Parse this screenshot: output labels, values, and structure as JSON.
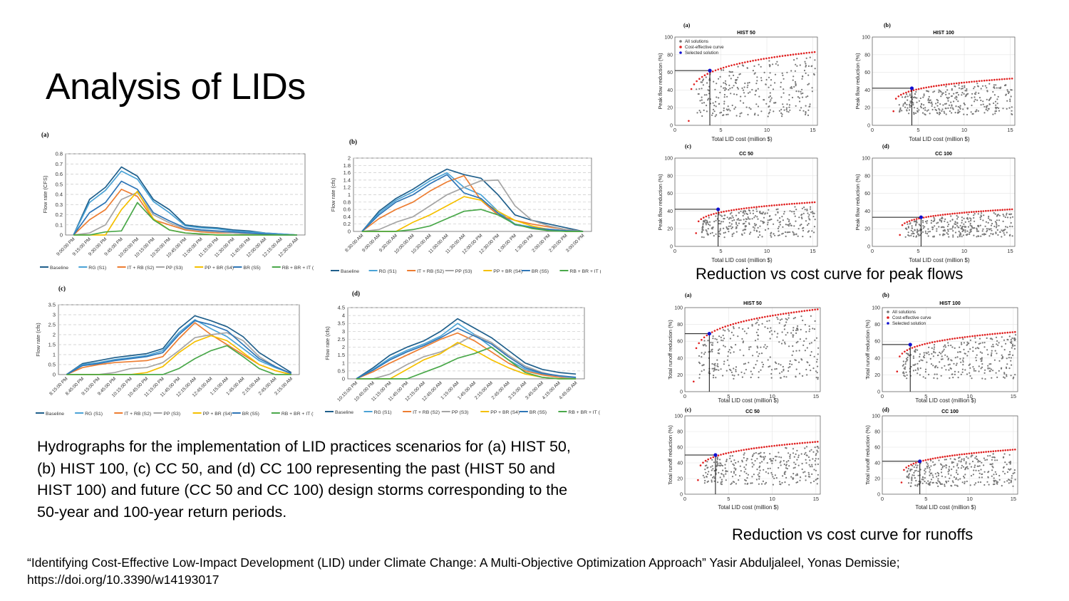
{
  "slide": {
    "title": "Analysis of LIDs",
    "caption": "Hydrographs for the implementation of LID practices scenarios for (a) HIST 50, (b) HIST 100, (c) CC 50, and (d) CC 100 representing the past (HIST 50 and HIST 100) and future (CC 50 and CC 100) design storms corresponding to the 50-year and 100-year return periods.",
    "peak_caption": "Reduction vs cost curve for peak flows",
    "runoff_caption": "Reduction vs cost curve for runoffs",
    "citation": "“Identifying Cost-Effective Low-Impact Development (LID) under Climate Change: A Multi-Objective Optimization Approach” Yasir Abduljaleel, Yonas Demissie; https://doi.org/10.3390/w14193017"
  },
  "colors": {
    "Baseline": "#1f5f8b",
    "RG (S1)": "#4ba3d6",
    "IT + RB (S2)": "#ed7d31",
    "PP (S3)": "#a5a5a5",
    "PP + BR (S4)": "#f5c000",
    "BR (S5)": "#2e75b6",
    "RB + BR + IT (S6)": "#4aa84a",
    "all_solutions": "#777777",
    "cost_effective": "#e02020",
    "selected": "#1010d0"
  },
  "chart_data": [
    {
      "type": "line",
      "panel": "(a)",
      "ylabel": "Flow rate (CFS)",
      "yticks": [
        "0",
        "0.1",
        "0.2",
        "0.3",
        "0.4",
        "0.5",
        "0.6",
        "0.7",
        "0.8"
      ],
      "ylim": [
        0,
        0.8
      ],
      "categories": [
        "9:00:00 PM",
        "9:15:00 PM",
        "9:30:00 PM",
        "9:45:00 PM",
        "10:00:00 PM",
        "10:15:00 PM",
        "10:30:00 PM",
        "10:45:00 PM",
        "11:00:00 PM",
        "11:15:00 PM",
        "11:30:00 PM",
        "11:45:00 PM",
        "12:00:00 AM",
        "12:15:00 AM",
        "12:30:00 AM"
      ],
      "series": [
        {
          "name": "Baseline",
          "values": [
            0,
            0.35,
            0.47,
            0.67,
            0.58,
            0.35,
            0.25,
            0.1,
            0.08,
            0.07,
            0.05,
            0.04,
            0.02,
            0.01,
            0
          ]
        },
        {
          "name": "RG (S1)",
          "values": [
            0,
            0.32,
            0.44,
            0.63,
            0.55,
            0.33,
            0.22,
            0.09,
            0.07,
            0.06,
            0.04,
            0.03,
            0.02,
            0.01,
            0
          ]
        },
        {
          "name": "IT + RB (S2)",
          "values": [
            0,
            0.15,
            0.25,
            0.45,
            0.38,
            0.15,
            0.1,
            0.05,
            0.03,
            0.02,
            0.02,
            0.01,
            0.01,
            0,
            0
          ]
        },
        {
          "name": "PP (S3)",
          "values": [
            0,
            0.02,
            0.1,
            0.35,
            0.42,
            0.2,
            0.12,
            0.06,
            0.04,
            0.03,
            0.02,
            0.01,
            0,
            0,
            0
          ]
        },
        {
          "name": "PP + BR (S4)",
          "values": [
            0,
            0,
            0,
            0.25,
            0.43,
            0.16,
            0.05,
            0.02,
            0.01,
            0,
            0,
            0,
            0,
            0,
            0
          ]
        },
        {
          "name": "BR (S5)",
          "values": [
            0,
            0.22,
            0.32,
            0.53,
            0.45,
            0.22,
            0.14,
            0.07,
            0.05,
            0.04,
            0.03,
            0.02,
            0.01,
            0,
            0
          ]
        },
        {
          "name": "RB + BR + IT (S6)",
          "values": [
            0,
            0,
            0.03,
            0.04,
            0.32,
            0.15,
            0.05,
            0.02,
            0.01,
            0,
            0,
            0,
            0,
            0,
            0
          ]
        }
      ]
    },
    {
      "type": "line",
      "panel": "(b)",
      "ylabel": "Flow rate (cfs)",
      "yticks": [
        "0",
        "0.2",
        "0.4",
        "0.6",
        "0.8",
        "1",
        "1.2",
        "1.4",
        "1.6",
        "1.8",
        "2"
      ],
      "ylim": [
        0,
        2
      ],
      "categories": [
        "8:30:00 AM",
        "9:00:00 AM",
        "9:30:00 AM",
        "10:00:00 AM",
        "10:30:00 AM",
        "11:00:00 AM",
        "11:30:00 AM",
        "12:00:00 PM",
        "12:30:00 PM",
        "1:00:00 PM",
        "1:30:00 PM",
        "2:00:00 PM",
        "2:30:00 PM",
        "3:00:00 PM"
      ],
      "series": [
        {
          "name": "Baseline",
          "values": [
            0,
            0.55,
            0.9,
            1.15,
            1.45,
            1.7,
            1.55,
            1.45,
            1.0,
            0.45,
            0.3,
            0.2,
            0.1,
            0
          ]
        },
        {
          "name": "RG (S1)",
          "values": [
            0,
            0.5,
            0.85,
            1.08,
            1.38,
            1.6,
            1.2,
            1.0,
            0.55,
            0.2,
            0.12,
            0.06,
            0.02,
            0
          ]
        },
        {
          "name": "IT + RB (S2)",
          "values": [
            0,
            0.35,
            0.6,
            0.8,
            1.1,
            1.35,
            1.52,
            0.85,
            0.45,
            0.3,
            0.2,
            0.12,
            0.05,
            0
          ]
        },
        {
          "name": "PP (S3)",
          "values": [
            0,
            0.05,
            0.25,
            0.4,
            0.7,
            1.0,
            1.2,
            1.38,
            1.4,
            0.7,
            0.3,
            0.15,
            0.05,
            0
          ]
        },
        {
          "name": "PP + BR (S4)",
          "values": [
            0,
            0,
            0,
            0.25,
            0.45,
            0.7,
            0.95,
            0.85,
            0.55,
            0.3,
            0.15,
            0.05,
            0,
            0
          ]
        },
        {
          "name": "BR (S5)",
          "values": [
            0,
            0.45,
            0.8,
            1.0,
            1.3,
            1.55,
            1.05,
            0.9,
            0.5,
            0.18,
            0.1,
            0.05,
            0.02,
            0
          ]
        },
        {
          "name": "RB + BR + IT (S6)",
          "values": [
            0,
            0,
            0,
            0.05,
            0.15,
            0.35,
            0.55,
            0.6,
            0.45,
            0.2,
            0.08,
            0.02,
            0,
            0
          ]
        }
      ]
    },
    {
      "type": "line",
      "panel": "(c)",
      "ylabel": "Flow rate (cfs)",
      "yticks": [
        "0",
        "0.5",
        "1",
        "1.5",
        "2",
        "2.5",
        "3",
        "3.5"
      ],
      "ylim": [
        0,
        3.5
      ],
      "categories": [
        "8:15:00 PM",
        "8:45:00 PM",
        "9:15:00 PM",
        "9:45:00 PM",
        "10:15:00 PM",
        "10:45:00 PM",
        "11:15:00 PM",
        "11:45:00 PM",
        "12:15:00 AM",
        "12:45:00 AM",
        "1:15:00 AM",
        "1:45:00 AM",
        "2:15:00 AM",
        "2:45:00 AM",
        "3:15:00 AM"
      ],
      "series": [
        {
          "name": "Baseline",
          "values": [
            0,
            0.55,
            0.7,
            0.85,
            0.95,
            1.05,
            1.3,
            2.3,
            2.95,
            2.7,
            2.4,
            1.9,
            1.1,
            0.6,
            0.1
          ]
        },
        {
          "name": "RG (S1)",
          "values": [
            0,
            0.5,
            0.6,
            0.75,
            0.85,
            0.95,
            1.2,
            2.1,
            2.75,
            2.3,
            1.9,
            1.3,
            0.7,
            0.35,
            0.05
          ]
        },
        {
          "name": "IT + RB (S2)",
          "values": [
            0,
            0.35,
            0.5,
            0.6,
            0.65,
            0.7,
            0.9,
            1.8,
            2.6,
            2.0,
            1.5,
            1.0,
            0.5,
            0.2,
            0
          ]
        },
        {
          "name": "PP (S3)",
          "values": [
            0,
            0,
            0,
            0.1,
            0.3,
            0.35,
            0.6,
            1.2,
            1.85,
            2.0,
            2.1,
            1.7,
            0.9,
            0.4,
            0.05
          ]
        },
        {
          "name": "PP + BR (S4)",
          "values": [
            0,
            0,
            0,
            0,
            0,
            0.1,
            0.4,
            1.1,
            1.65,
            1.95,
            1.7,
            1.1,
            0.5,
            0.2,
            0
          ]
        },
        {
          "name": "BR (S5)",
          "values": [
            0,
            0.45,
            0.55,
            0.7,
            0.8,
            0.9,
            1.1,
            2.0,
            2.7,
            2.5,
            2.2,
            1.5,
            0.8,
            0.4,
            0.05
          ]
        },
        {
          "name": "RB + BR + IT (S6)",
          "values": [
            0,
            0,
            0,
            0,
            0,
            0,
            0,
            0.3,
            0.8,
            1.2,
            1.45,
            0.9,
            0.3,
            0,
            0
          ]
        }
      ]
    },
    {
      "type": "line",
      "panel": "(d)",
      "ylabel": "Flow rate (cfs)",
      "yticks": [
        "0",
        "0.5",
        "1",
        "1.5",
        "2",
        "2.5",
        "3",
        "3.5",
        "4",
        "4.5"
      ],
      "ylim": [
        0,
        4.5
      ],
      "categories": [
        "10:15:00 PM",
        "10:45:00 PM",
        "11:15:00 PM",
        "11:45:00 PM",
        "12:15:00 AM",
        "12:45:00 AM",
        "1:15:00 AM",
        "1:45:00 AM",
        "2:15:00 AM",
        "2:45:00 AM",
        "3:15:00 AM",
        "3:45:00 AM",
        "4:15:00 AM",
        "4:45:00 AM"
      ],
      "series": [
        {
          "name": "Baseline",
          "values": [
            0,
            0.7,
            1.5,
            2.0,
            2.4,
            3.0,
            3.8,
            3.2,
            2.6,
            1.8,
            1.0,
            0.6,
            0.4,
            0.3
          ]
        },
        {
          "name": "RG (S1)",
          "values": [
            0,
            0.6,
            1.3,
            1.8,
            2.2,
            2.7,
            3.5,
            2.8,
            2.0,
            1.2,
            0.6,
            0.3,
            0.15,
            0.05
          ]
        },
        {
          "name": "IT + RB (S2)",
          "values": [
            0,
            0.45,
            1.0,
            1.5,
            2.0,
            2.5,
            2.9,
            2.4,
            1.7,
            1.0,
            0.5,
            0.25,
            0.1,
            0
          ]
        },
        {
          "name": "PP (S3)",
          "values": [
            0,
            0,
            0.3,
            0.9,
            1.4,
            1.7,
            2.2,
            2.8,
            2.3,
            1.5,
            0.8,
            0.4,
            0.15,
            0
          ]
        },
        {
          "name": "PP + BR (S4)",
          "values": [
            0,
            0,
            0,
            0.6,
            1.2,
            1.6,
            2.3,
            1.8,
            1.2,
            0.7,
            0.3,
            0.1,
            0,
            0
          ]
        },
        {
          "name": "BR (S5)",
          "values": [
            0,
            0.55,
            1.2,
            1.7,
            2.1,
            2.6,
            3.2,
            2.7,
            2.2,
            1.4,
            0.7,
            0.35,
            0.2,
            0.1
          ]
        },
        {
          "name": "RB + BR + IT (S6)",
          "values": [
            0,
            0,
            0,
            0,
            0.4,
            0.8,
            1.3,
            1.6,
            2.0,
            1.2,
            0.4,
            0.1,
            0,
            0
          ]
        }
      ]
    },
    {
      "type": "scatter",
      "panel": "(a)",
      "title": "HIST 50",
      "ylabel": "Peak flow reduction (%)",
      "xlabel": "Total LID cost (million $)",
      "xlim": [
        0,
        15.5
      ],
      "ylim": [
        0,
        100
      ],
      "xticks": [
        0,
        5,
        10,
        15
      ],
      "yticks": [
        0,
        20,
        40,
        60,
        80,
        100
      ],
      "legend": [
        "All solutions",
        "Cost-effective curve",
        "Selected solution"
      ],
      "legend_position": "top-left",
      "selected": {
        "x": 3.8,
        "y": 62
      },
      "frontier": {
        "x_start": 1.5,
        "y_start": 5,
        "y_end": 83,
        "curvature": 0.2
      },
      "cloud": {
        "y_min": 10,
        "y_max": 80
      }
    },
    {
      "type": "scatter",
      "panel": "(b)",
      "title": "HIST 100",
      "ylabel": "Peak flow reduction (%)",
      "xlabel": "Total LID cost (million $)",
      "xlim": [
        0,
        15.5
      ],
      "ylim": [
        0,
        100
      ],
      "xticks": [
        0,
        5,
        10,
        15
      ],
      "yticks": [
        0,
        20,
        40,
        60,
        80,
        100
      ],
      "selected": {
        "x": 4.3,
        "y": 42
      },
      "frontier": {
        "x_start": 2.3,
        "y_start": 16,
        "y_end": 53,
        "curvature": 0.25
      },
      "cloud": {
        "y_min": 12,
        "y_max": 48
      }
    },
    {
      "type": "scatter",
      "panel": "(c)",
      "title": "CC 50",
      "ylabel": "Peak flow reduction (%)",
      "xlabel": "Total LID cost (million $)",
      "xlim": [
        0,
        15.5
      ],
      "ylim": [
        0,
        100
      ],
      "xticks": [
        0,
        5,
        10,
        15
      ],
      "yticks": [
        0,
        20,
        40,
        60,
        80,
        100
      ],
      "selected": {
        "x": 4.7,
        "y": 42
      },
      "frontier": {
        "x_start": 2.3,
        "y_start": 15,
        "y_end": 50,
        "curvature": 0.25
      },
      "cloud": {
        "y_min": 10,
        "y_max": 45
      }
    },
    {
      "type": "scatter",
      "panel": "(d)",
      "title": "CC 100",
      "ylabel": "Peak flow reduction (%)",
      "xlabel": "Total LID cost (million $)",
      "xlim": [
        0,
        15.5
      ],
      "ylim": [
        0,
        100
      ],
      "xticks": [
        0,
        5,
        10,
        15
      ],
      "yticks": [
        0,
        20,
        40,
        60,
        80,
        100
      ],
      "selected": {
        "x": 5.3,
        "y": 33
      },
      "frontier": {
        "x_start": 3.0,
        "y_start": 13,
        "y_end": 42,
        "curvature": 0.25
      },
      "cloud": {
        "y_min": 10,
        "y_max": 38
      }
    },
    {
      "type": "scatter",
      "panel": "(a)",
      "title": "HIST 50",
      "ylabel": "Total runoff reduction (%)",
      "xlabel": "Total LID cost (million $)",
      "xlim": [
        0,
        15.5
      ],
      "ylim": [
        0,
        100
      ],
      "xticks": [
        0,
        5,
        10,
        15
      ],
      "yticks": [
        0,
        20,
        40,
        60,
        80,
        100
      ],
      "selected": {
        "x": 2.8,
        "y": 69
      },
      "frontier": {
        "x_start": 1.0,
        "y_start": 12,
        "y_end": 98,
        "curvature": 0.2
      },
      "cloud": {
        "y_min": 15,
        "y_max": 92
      }
    },
    {
      "type": "scatter",
      "panel": "(b)",
      "title": "HIST 100",
      "ylabel": "Total runoff reduction (%)",
      "xlabel": "Total LID cost (million $)",
      "xlim": [
        0,
        15.5
      ],
      "ylim": [
        0,
        100
      ],
      "xticks": [
        0,
        5,
        10,
        15
      ],
      "yticks": [
        0,
        20,
        40,
        60,
        80,
        100
      ],
      "legend": [
        "All solutions",
        "Cost-effective curve",
        "Selected solution"
      ],
      "legend_position": "top-left",
      "selected": {
        "x": 3.2,
        "y": 56
      },
      "frontier": {
        "x_start": 1.7,
        "y_start": 24,
        "y_end": 71,
        "curvature": 0.25
      },
      "cloud": {
        "y_min": 15,
        "y_max": 68
      }
    },
    {
      "type": "scatter",
      "panel": "(c)",
      "title": "CC 50",
      "ylabel": "Total runoff reduction (%)",
      "xlabel": "Total LID cost (million $)",
      "xlim": [
        0,
        15.5
      ],
      "ylim": [
        0,
        100
      ],
      "xticks": [
        0,
        5,
        10,
        15
      ],
      "yticks": [
        0,
        20,
        40,
        60,
        80,
        100
      ],
      "selected": {
        "x": 3.5,
        "y": 50
      },
      "frontier": {
        "x_start": 1.5,
        "y_start": 18,
        "y_end": 67,
        "curvature": 0.25
      },
      "cloud": {
        "y_min": 12,
        "y_max": 62
      }
    },
    {
      "type": "scatter",
      "panel": "(d)",
      "title": "CC 100",
      "ylabel": "Total runoff reduction (%)",
      "xlabel": "Total LID cost (million $)",
      "xlim": [
        0,
        15.5
      ],
      "ylim": [
        0,
        100
      ],
      "xticks": [
        0,
        5,
        10,
        15
      ],
      "yticks": [
        0,
        20,
        40,
        60,
        80,
        100
      ],
      "selected": {
        "x": 4.3,
        "y": 42
      },
      "frontier": {
        "x_start": 2.2,
        "y_start": 15,
        "y_end": 57,
        "curvature": 0.25
      },
      "cloud": {
        "y_min": 10,
        "y_max": 52
      }
    }
  ]
}
